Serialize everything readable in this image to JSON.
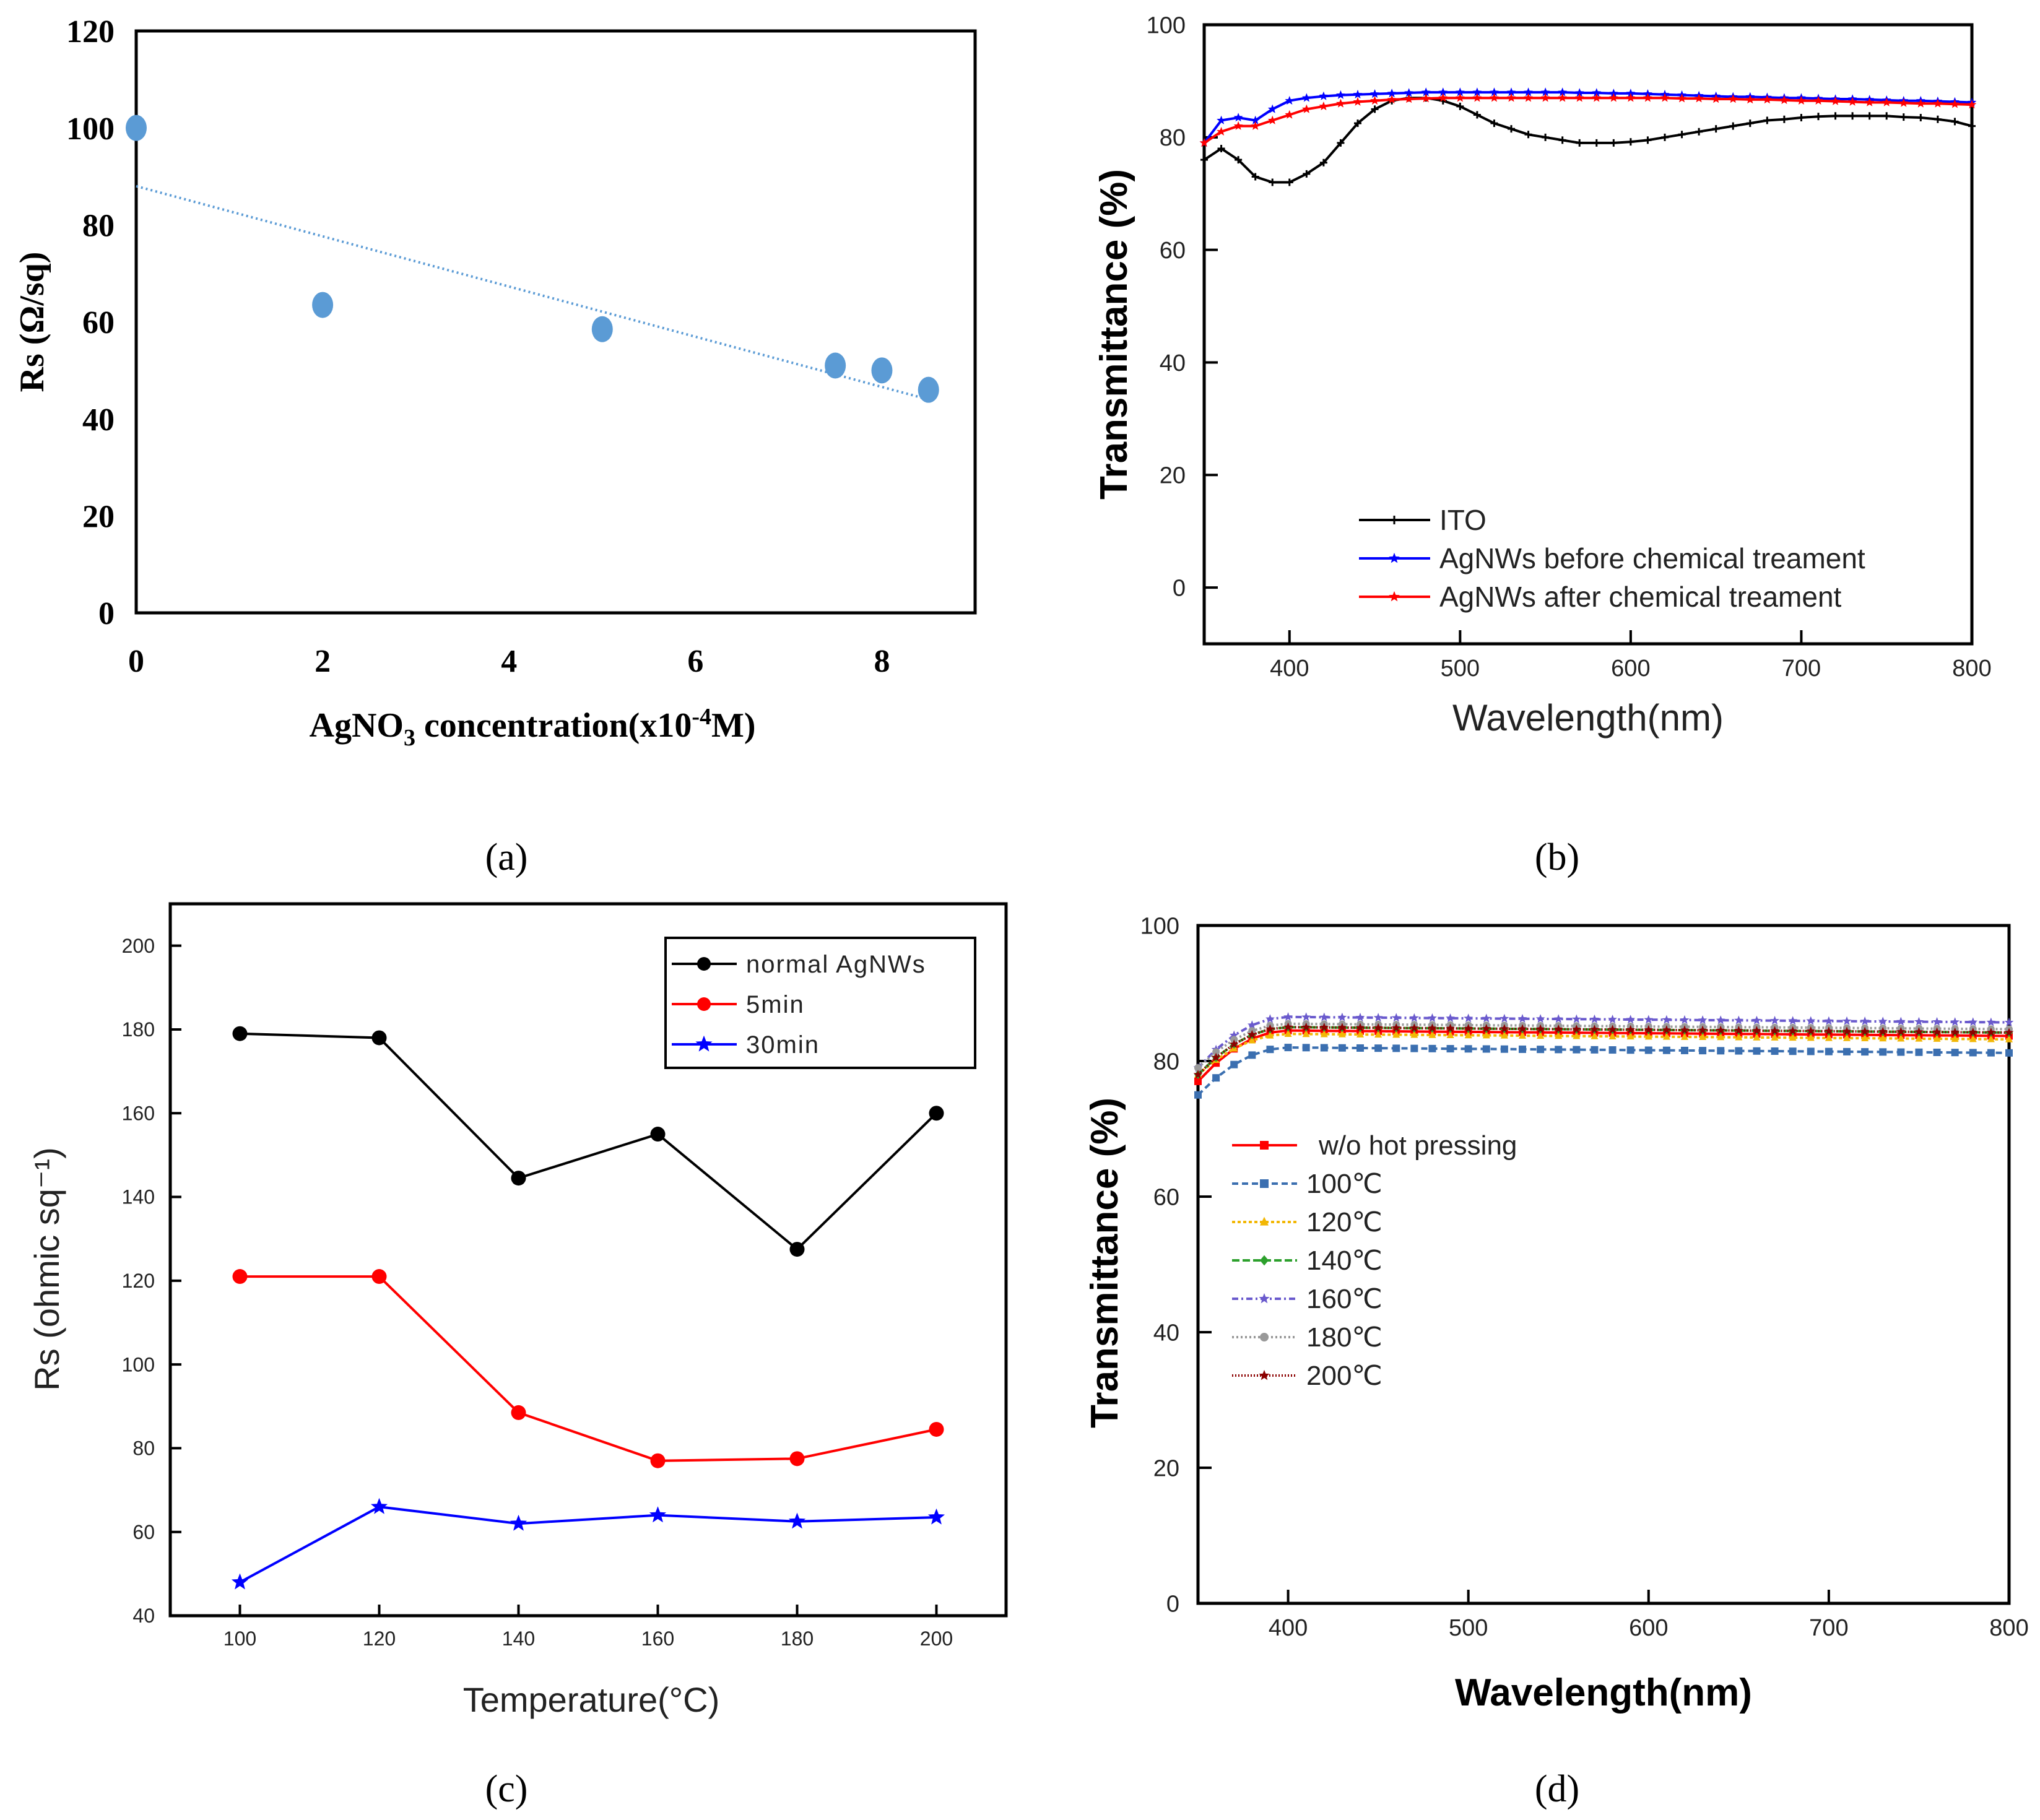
{
  "figure_labels": [
    "(a)",
    "(b)",
    "(c)",
    "(d)"
  ],
  "chart_data": [
    {
      "id": "a",
      "type": "scatter",
      "title": "",
      "xlabel_parts": [
        "AgNO",
        "3",
        " concentration(x10",
        "-4",
        "M)"
      ],
      "ylabel": "Rs (Ω/sq)",
      "xlim": [
        0,
        9
      ],
      "ylim": [
        0,
        120
      ],
      "xticks": [
        0,
        2,
        4,
        6,
        8
      ],
      "yticks": [
        0,
        20,
        40,
        60,
        80,
        100,
        120
      ],
      "colors": {
        "points": "#5b9bd5",
        "trend": "#5b9bd5"
      },
      "series": [
        {
          "name": "Rs",
          "x": [
            0,
            2,
            5,
            7.5,
            8,
            8.5
          ],
          "y": [
            100,
            63.5,
            58.5,
            51,
            50,
            46
          ]
        }
      ],
      "trendline": {
        "x": [
          0,
          8.5
        ],
        "y": [
          88,
          44
        ]
      }
    },
    {
      "id": "b",
      "type": "line",
      "title": "",
      "xlabel": "Wavelength(nm)",
      "ylabel": "Transmittance (%)",
      "xlim": [
        350,
        800
      ],
      "ylim": [
        -10,
        100
      ],
      "xticks": [
        400,
        500,
        600,
        700,
        800
      ],
      "yticks": [
        0,
        20,
        40,
        60,
        80,
        100
      ],
      "legend": "bottom-left",
      "series": [
        {
          "name": "ITO",
          "color": "#000000",
          "x": [
            350,
            360,
            370,
            380,
            390,
            400,
            410,
            420,
            430,
            440,
            450,
            460,
            470,
            480,
            490,
            500,
            510,
            520,
            530,
            540,
            550,
            560,
            570,
            580,
            590,
            600,
            610,
            620,
            630,
            640,
            650,
            660,
            670,
            680,
            690,
            700,
            710,
            720,
            730,
            740,
            750,
            760,
            770,
            780,
            790,
            800
          ],
          "y": [
            76,
            78,
            76,
            73,
            72,
            72,
            73.5,
            75.5,
            79,
            82.5,
            85,
            86.5,
            87,
            87,
            86.5,
            85.5,
            84,
            82.5,
            81.5,
            80.5,
            80,
            79.5,
            79,
            79,
            79,
            79.2,
            79.5,
            80,
            80.5,
            81,
            81.5,
            82,
            82.5,
            83,
            83.2,
            83.5,
            83.7,
            83.8,
            83.8,
            83.8,
            83.8,
            83.6,
            83.5,
            83.2,
            82.8,
            82
          ]
        },
        {
          "name": "AgNWs before chemical treament",
          "color": "#0000ff",
          "x": [
            350,
            360,
            370,
            380,
            390,
            400,
            410,
            420,
            430,
            440,
            450,
            460,
            470,
            480,
            490,
            500,
            510,
            520,
            530,
            540,
            550,
            560,
            570,
            580,
            590,
            600,
            610,
            620,
            630,
            640,
            650,
            660,
            670,
            680,
            690,
            700,
            710,
            720,
            730,
            740,
            750,
            760,
            770,
            780,
            790,
            800
          ],
          "y": [
            79,
            83,
            83.5,
            83,
            85,
            86.5,
            87,
            87.3,
            87.5,
            87.6,
            87.7,
            87.8,
            87.9,
            88,
            88,
            88,
            88,
            88,
            88,
            88,
            88,
            88,
            87.9,
            87.9,
            87.8,
            87.8,
            87.7,
            87.6,
            87.5,
            87.4,
            87.3,
            87.2,
            87.2,
            87.1,
            87,
            87,
            86.9,
            86.8,
            86.8,
            86.7,
            86.6,
            86.5,
            86.5,
            86.4,
            86.3,
            86.2
          ]
        },
        {
          "name": "AgNWs after chemical treament",
          "color": "#ff0000",
          "x": [
            350,
            360,
            370,
            380,
            390,
            400,
            410,
            420,
            430,
            440,
            450,
            460,
            470,
            480,
            490,
            500,
            510,
            520,
            530,
            540,
            550,
            560,
            570,
            580,
            590,
            600,
            610,
            620,
            630,
            640,
            650,
            660,
            670,
            680,
            690,
            700,
            710,
            720,
            730,
            740,
            750,
            760,
            770,
            780,
            790,
            800
          ],
          "y": [
            79,
            81,
            82,
            82,
            83,
            84,
            85,
            85.5,
            86,
            86.3,
            86.5,
            86.7,
            86.8,
            86.9,
            87,
            87,
            87,
            87,
            87,
            87,
            87,
            87,
            87,
            87,
            87,
            87,
            87,
            87,
            86.9,
            86.9,
            86.8,
            86.8,
            86.7,
            86.7,
            86.6,
            86.5,
            86.5,
            86.4,
            86.3,
            86.2,
            86.2,
            86.1,
            86,
            86,
            85.9,
            85.8
          ]
        }
      ]
    },
    {
      "id": "c",
      "type": "line",
      "title": "",
      "xlabel": "Temperature(°C)",
      "ylabel": "Rs (ohmic sq⁻¹)",
      "xlim": [
        90,
        210
      ],
      "ylim": [
        40,
        210
      ],
      "xticks": [
        100,
        120,
        140,
        160,
        180,
        200
      ],
      "yticks": [
        40,
        60,
        80,
        100,
        120,
        140,
        160,
        180,
        200
      ],
      "legend": "top-right",
      "categories": [
        100,
        120,
        140,
        160,
        180,
        200
      ],
      "series": [
        {
          "name": "normal AgNWs",
          "color": "#000000",
          "marker": "circle",
          "values": [
            179,
            178,
            144.5,
            155,
            127.5,
            160
          ]
        },
        {
          "name": "5min",
          "color": "#ff0000",
          "marker": "circle",
          "values": [
            121,
            121,
            88.5,
            77,
            77.5,
            84.5
          ]
        },
        {
          "name": "30min",
          "color": "#0000ff",
          "marker": "star",
          "values": [
            48,
            66,
            62,
            64,
            62.5,
            63.5
          ]
        }
      ]
    },
    {
      "id": "d",
      "type": "line",
      "title": "",
      "xlabel": "Wavelength(nm)",
      "ylabel": "Transmittance (%)",
      "xlim": [
        350,
        800
      ],
      "ylim": [
        0,
        100
      ],
      "xticks": [
        400,
        500,
        600,
        700,
        800
      ],
      "yticks": [
        0,
        20,
        40,
        60,
        80,
        100
      ],
      "legend": "middle-left",
      "x": [
        350,
        360,
        370,
        380,
        390,
        400,
        410,
        420,
        430,
        440,
        450,
        460,
        470,
        480,
        490,
        500,
        510,
        520,
        530,
        540,
        550,
        560,
        570,
        580,
        590,
        600,
        610,
        620,
        630,
        640,
        650,
        660,
        670,
        680,
        690,
        700,
        710,
        720,
        730,
        740,
        750,
        760,
        770,
        780,
        790,
        800
      ],
      "series": [
        {
          "name": "w/o hot pressing",
          "color": "#ff0000",
          "dash": "",
          "shape": "square",
          "base": 84.5,
          "start": 77
        },
        {
          "name": "100℃",
          "color": "#3b6fb0",
          "dash": "10,6",
          "shape": "square",
          "base": 82,
          "start": 75
        },
        {
          "name": "120℃",
          "color": "#f2b705",
          "dash": "5,4",
          "shape": "triangle",
          "base": 84,
          "start": 78
        },
        {
          "name": "140℃",
          "color": "#2ca02c",
          "dash": "12,5",
          "shape": "diamond",
          "base": 85,
          "start": 78
        },
        {
          "name": "160℃",
          "color": "#6a5acd",
          "dash": "10,5,3,5",
          "shape": "star",
          "base": 86.5,
          "start": 79
        },
        {
          "name": "180℃",
          "color": "#999999",
          "dash": "3,4",
          "shape": "circle",
          "base": 85.5,
          "start": 79
        },
        {
          "name": "200℃",
          "color": "#8b0000",
          "dash": "2,3",
          "shape": "star",
          "base": 85,
          "start": 78
        }
      ]
    }
  ]
}
